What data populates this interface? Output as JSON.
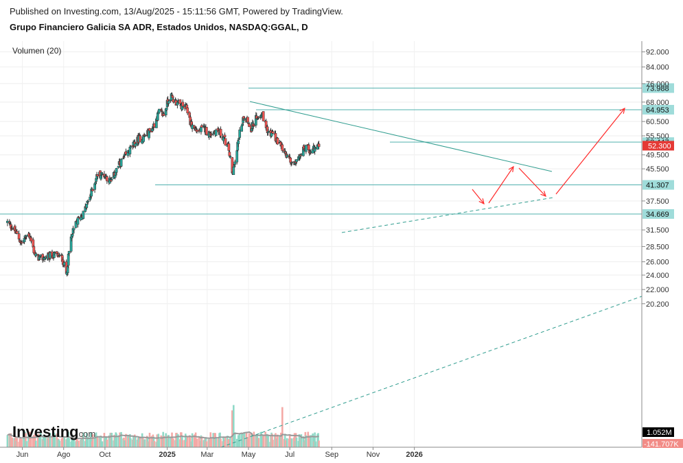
{
  "header": {
    "published": "Published on Investing.com, 13/Aug/2025 - 15:11:56 GMT, Powered by TradingView.",
    "instrument": "Grupo Financiero Galicia SA ADR, Estados Unidos, NASDAQ:GGAL, D"
  },
  "volume_label": "Volumen (20)",
  "watermark": {
    "brand": "Investing",
    "suffix": ".com"
  },
  "colors": {
    "up": "#26a69a",
    "down": "#ef5350",
    "level_line": "#4fb0ae",
    "trend_line": "#2e9c8e",
    "arrow": "#ff2a2a",
    "price_badge": "#e53935",
    "volume_badge": "#000000"
  },
  "chart_data": {
    "type": "candlestick",
    "title": "Grupo Financiero Galicia SA ADR, Estados Unidos, NASDAQ:GGAL, D",
    "x_ticks": [
      "Jun",
      "Ago",
      "Oct",
      "2025",
      "Mar",
      "May",
      "Jul",
      "Sep",
      "Nov",
      "2026"
    ],
    "y_ticks": [
      "92.000",
      "84.000",
      "76.000",
      "68.000",
      "60.500",
      "55.500",
      "49.500",
      "45.500",
      "37.500",
      "31.500",
      "28.500",
      "26.000",
      "24.000",
      "22.000",
      "20.200"
    ],
    "y_tick_values": [
      92,
      84,
      76,
      68,
      60.5,
      55.5,
      49.5,
      45.5,
      37.5,
      31.5,
      28.5,
      26,
      24,
      22,
      20.2
    ],
    "y_scale": "log",
    "ylim": [
      18.7,
      98
    ],
    "last_price": "52.300",
    "last_volume": "1.052M",
    "volume_change": "-141.707K",
    "horizontal_levels": [
      "73.988",
      "64.953",
      "53.447",
      "41.307",
      "34.669"
    ],
    "price_path": [
      [
        "2024-05-10",
        33.0
      ],
      [
        "2024-05-20",
        31.5
      ],
      [
        "2024-05-31",
        29.0
      ],
      [
        "2024-06-10",
        31.0
      ],
      [
        "2024-06-20",
        27.0
      ],
      [
        "2024-06-28",
        26.5
      ],
      [
        "2024-07-10",
        26.8
      ],
      [
        "2024-07-20",
        27.2
      ],
      [
        "2024-07-30",
        26.5
      ],
      [
        "2024-08-05",
        24.2
      ],
      [
        "2024-08-12",
        30.0
      ],
      [
        "2024-08-20",
        33.0
      ],
      [
        "2024-08-31",
        35.0
      ],
      [
        "2024-09-10",
        39.0
      ],
      [
        "2024-09-20",
        44.0
      ],
      [
        "2024-09-30",
        44.0
      ],
      [
        "2024-10-10",
        42.0
      ],
      [
        "2024-10-20",
        46.0
      ],
      [
        "2024-10-31",
        49.0
      ],
      [
        "2024-11-10",
        52.0
      ],
      [
        "2024-11-20",
        54.5
      ],
      [
        "2024-11-30",
        55.5
      ],
      [
        "2024-12-10",
        58.0
      ],
      [
        "2024-12-20",
        64.0
      ],
      [
        "2024-12-27",
        63.0
      ],
      [
        "2025-01-05",
        71.0
      ],
      [
        "2025-01-10",
        69.0
      ],
      [
        "2025-01-20",
        66.5
      ],
      [
        "2025-01-30",
        65.5
      ],
      [
        "2025-02-05",
        59.5
      ],
      [
        "2025-02-15",
        57.0
      ],
      [
        "2025-02-25",
        58.0
      ],
      [
        "2025-03-05",
        56.0
      ],
      [
        "2025-03-15",
        57.5
      ],
      [
        "2025-03-25",
        55.0
      ],
      [
        "2025-04-02",
        51.0
      ],
      [
        "2025-04-07",
        44.0
      ],
      [
        "2025-04-12",
        49.0
      ],
      [
        "2025-04-20",
        59.0
      ],
      [
        "2025-04-25",
        63.0
      ],
      [
        "2025-05-05",
        58.0
      ],
      [
        "2025-05-15",
        63.0
      ],
      [
        "2025-05-20",
        64.0
      ],
      [
        "2025-05-30",
        57.0
      ],
      [
        "2025-06-10",
        55.0
      ],
      [
        "2025-06-20",
        51.0
      ],
      [
        "2025-06-30",
        48.0
      ],
      [
        "2025-07-05",
        47.0
      ],
      [
        "2025-07-15",
        49.5
      ],
      [
        "2025-07-25",
        52.0
      ],
      [
        "2025-08-01",
        50.5
      ],
      [
        "2025-08-13",
        52.3
      ]
    ],
    "volume_range_millions": [
      0,
      7
    ]
  }
}
